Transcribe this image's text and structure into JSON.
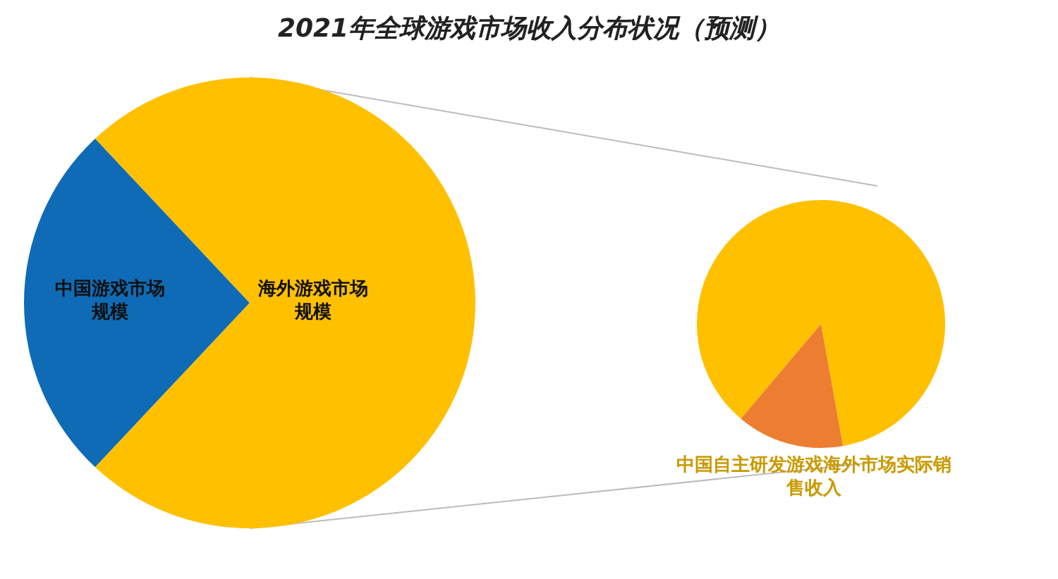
{
  "chart_data": [
    {
      "type": "pie",
      "title": "2021年全球游戏市场收入分布状况（预测）",
      "categories": [
        "中国游戏市场规模",
        "海外游戏市场规模"
      ],
      "values": [
        26,
        74
      ],
      "colors": [
        "#0f6bb5",
        "#ffc000"
      ]
    },
    {
      "type": "pie",
      "categories": [
        null,
        "中国自主研发游戏海外市场实际销售收入"
      ],
      "values": [
        86,
        14
      ],
      "colors": [
        "#ffc000",
        "#ed7d31"
      ]
    }
  ]
}
